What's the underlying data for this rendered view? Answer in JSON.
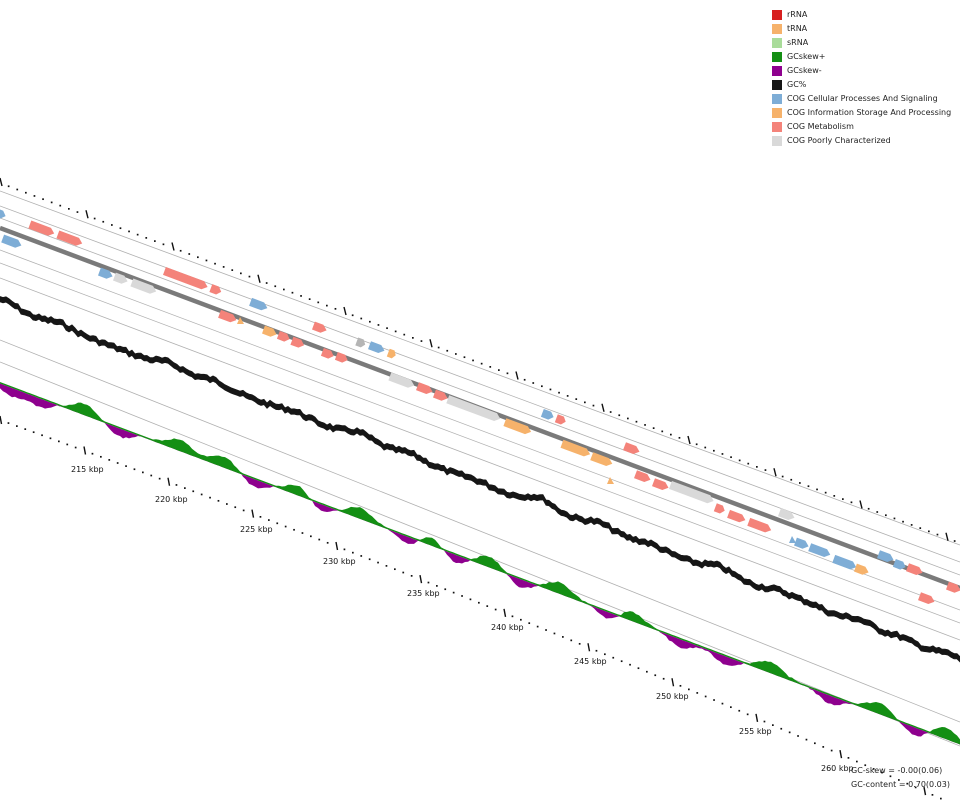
{
  "legend": [
    {
      "label": "rRNA",
      "color": "#d71f1f"
    },
    {
      "label": "tRNA",
      "color": "#f6b26b"
    },
    {
      "label": "sRNA",
      "color": "#a9dc9a"
    },
    {
      "label": "GCskew+",
      "color": "#148f14"
    },
    {
      "label": "GCskew-",
      "color": "#8e008e"
    },
    {
      "label": "GC%",
      "color": "#161616"
    },
    {
      "label": "COG Cellular Processes And Signaling",
      "color": "#7eadd6"
    },
    {
      "label": "COG Information Storage And Processing",
      "color": "#f6b26b"
    },
    {
      "label": "COG Metabolism",
      "color": "#f4837a"
    },
    {
      "label": "COG Poorly Characterized",
      "color": "#d9d9d9"
    }
  ],
  "position_labels": [
    "215 kbp",
    "220 kbp",
    "225 kbp",
    "230 kbp",
    "235 kbp",
    "240 kbp",
    "245 kbp",
    "250 kbp",
    "255 kbp",
    "260 kbp"
  ],
  "stats": {
    "gc_skew": "GC-skew = -0.00(0.06)",
    "gc_content": "GC-content = 0.70(0.03)"
  },
  "colors": {
    "backbone": "#808080",
    "track_line": "#aaaaaa",
    "ruler": "#111111"
  }
}
